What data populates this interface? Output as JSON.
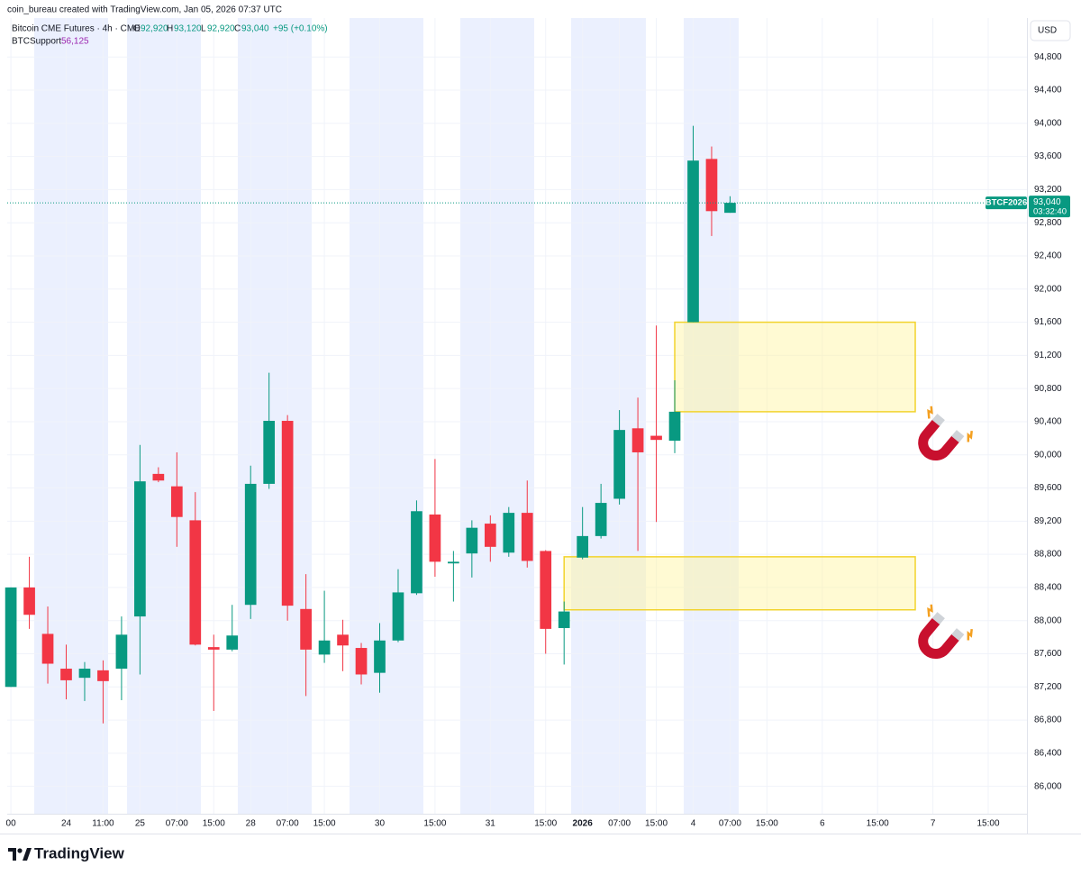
{
  "header": {
    "credit": "coin_bureau created with TradingView.com, Jan 05, 2026 07:37 UTC"
  },
  "legend": {
    "symbol": "Bitcoin CME Futures · 4h · CME",
    "o_key": "O",
    "o": "92,920",
    "h_key": "H",
    "h": "93,120",
    "l_key": "L",
    "l": "92,920",
    "c_key": "C",
    "c": "93,040",
    "change": "+95 (+0.10%)",
    "indicator": "BTCSupport",
    "indicator_value": "56,125"
  },
  "currency": "USD",
  "last_label": {
    "symbol": "BTCF2026",
    "price": "93,040",
    "countdown": "03:32:40"
  },
  "footer": {
    "brand": "TradingView"
  },
  "chart_data": {
    "type": "candlestick",
    "up_color": "#089981",
    "down_color": "#f23645",
    "open": [
      87200,
      88400,
      87840,
      87420,
      87310,
      87400,
      87420,
      88050,
      89770,
      89620,
      89210,
      87680,
      87650,
      88190,
      89650,
      90410,
      88140,
      87590,
      87830,
      87670,
      87370,
      87760,
      88330,
      89280,
      88690,
      88810,
      89170,
      88820,
      89300,
      88840,
      87910,
      88760,
      89020,
      89470,
      90320,
      90230,
      90170,
      91600,
      93570,
      92920
    ],
    "high": [
      88400,
      88770,
      88170,
      87710,
      87500,
      87520,
      88050,
      90120,
      89850,
      90030,
      89550,
      87830,
      88190,
      89870,
      90990,
      90480,
      88560,
      88360,
      88010,
      87730,
      87970,
      88620,
      89450,
      89950,
      88840,
      89210,
      89270,
      89370,
      89690,
      88850,
      88230,
      89370,
      89650,
      90540,
      90690,
      91560,
      90900,
      93970,
      93720,
      93120
    ],
    "low": [
      87200,
      87900,
      87240,
      87050,
      87030,
      86760,
      87040,
      87350,
      89670,
      88890,
      87700,
      86910,
      87630,
      88020,
      89590,
      88000,
      87090,
      87490,
      87390,
      87230,
      87130,
      87740,
      88310,
      88530,
      88230,
      88520,
      88710,
      88770,
      88640,
      87600,
      87470,
      88740,
      88990,
      89400,
      88840,
      89190,
      90020,
      91600,
      92640,
      92920
    ],
    "close": [
      88400,
      88070,
      87480,
      87280,
      87420,
      87270,
      87830,
      89680,
      89690,
      89250,
      87710,
      87650,
      87820,
      89650,
      90410,
      88180,
      87650,
      87760,
      87700,
      87350,
      87760,
      88340,
      89320,
      88710,
      88710,
      89120,
      88890,
      89300,
      88720,
      87900,
      88110,
      89020,
      89420,
      90300,
      90030,
      90180,
      90520,
      93550,
      92940,
      93040
    ],
    "zones": [
      {
        "high": 91600,
        "low": 90520,
        "color": "#fff59d"
      },
      {
        "high": 88770,
        "low": 88130,
        "color": "#fff59d"
      }
    ],
    "xlim": [
      -0.2,
      55.1
    ],
    "xticks": [
      {
        "value": 0,
        "label": "00"
      },
      {
        "value": 3,
        "label": "24"
      },
      {
        "value": 5,
        "label": "11:00"
      },
      {
        "value": 7,
        "label": "25"
      },
      {
        "value": 9,
        "label": "07:00"
      },
      {
        "value": 11,
        "label": "15:00"
      },
      {
        "value": 13,
        "label": "28"
      },
      {
        "value": 15,
        "label": "07:00"
      },
      {
        "value": 17,
        "label": "15:00"
      },
      {
        "value": 20,
        "label": "30"
      },
      {
        "value": 23,
        "label": "15:00"
      },
      {
        "value": 26,
        "label": "31"
      },
      {
        "value": 29,
        "label": "15:00"
      },
      {
        "value": 31,
        "label": "2026"
      },
      {
        "value": 33,
        "label": "07:00"
      },
      {
        "value": 35,
        "label": "15:00"
      },
      {
        "value": 37,
        "label": "4"
      },
      {
        "value": 39,
        "label": "07:00"
      },
      {
        "value": 41,
        "label": "15:00"
      },
      {
        "value": 44,
        "label": "6"
      },
      {
        "value": 47,
        "label": "15:00"
      },
      {
        "value": 50,
        "label": "7"
      },
      {
        "value": 53,
        "label": "15:00"
      }
    ],
    "ylim": [
      85670,
      95270
    ],
    "yticks": [
      {
        "value": 86000,
        "label": "86,000"
      },
      {
        "value": 86400,
        "label": "86,400"
      },
      {
        "value": 86800,
        "label": "86,800"
      },
      {
        "value": 87200,
        "label": "87,200"
      },
      {
        "value": 87600,
        "label": "87,600"
      },
      {
        "value": 88000,
        "label": "88,000"
      },
      {
        "value": 88400,
        "label": "88,400"
      },
      {
        "value": 88800,
        "label": "88,800"
      },
      {
        "value": 89200,
        "label": "89,200"
      },
      {
        "value": 89600,
        "label": "89,600"
      },
      {
        "value": 90000,
        "label": "90,000"
      },
      {
        "value": 90400,
        "label": "90,400"
      },
      {
        "value": 90800,
        "label": "90,800"
      },
      {
        "value": 91200,
        "label": "91,200"
      },
      {
        "value": 91600,
        "label": "91,600"
      },
      {
        "value": 92000,
        "label": "92,000"
      },
      {
        "value": 92400,
        "label": "92,400"
      },
      {
        "value": 92800,
        "label": "92,800"
      },
      {
        "value": 93200,
        "label": "93,200"
      },
      {
        "value": 93600,
        "label": "93,600"
      },
      {
        "value": 94000,
        "label": "94,000"
      },
      {
        "value": 94400,
        "label": "94,400"
      },
      {
        "value": 94800,
        "label": "94,800"
      }
    ],
    "grid": true
  }
}
